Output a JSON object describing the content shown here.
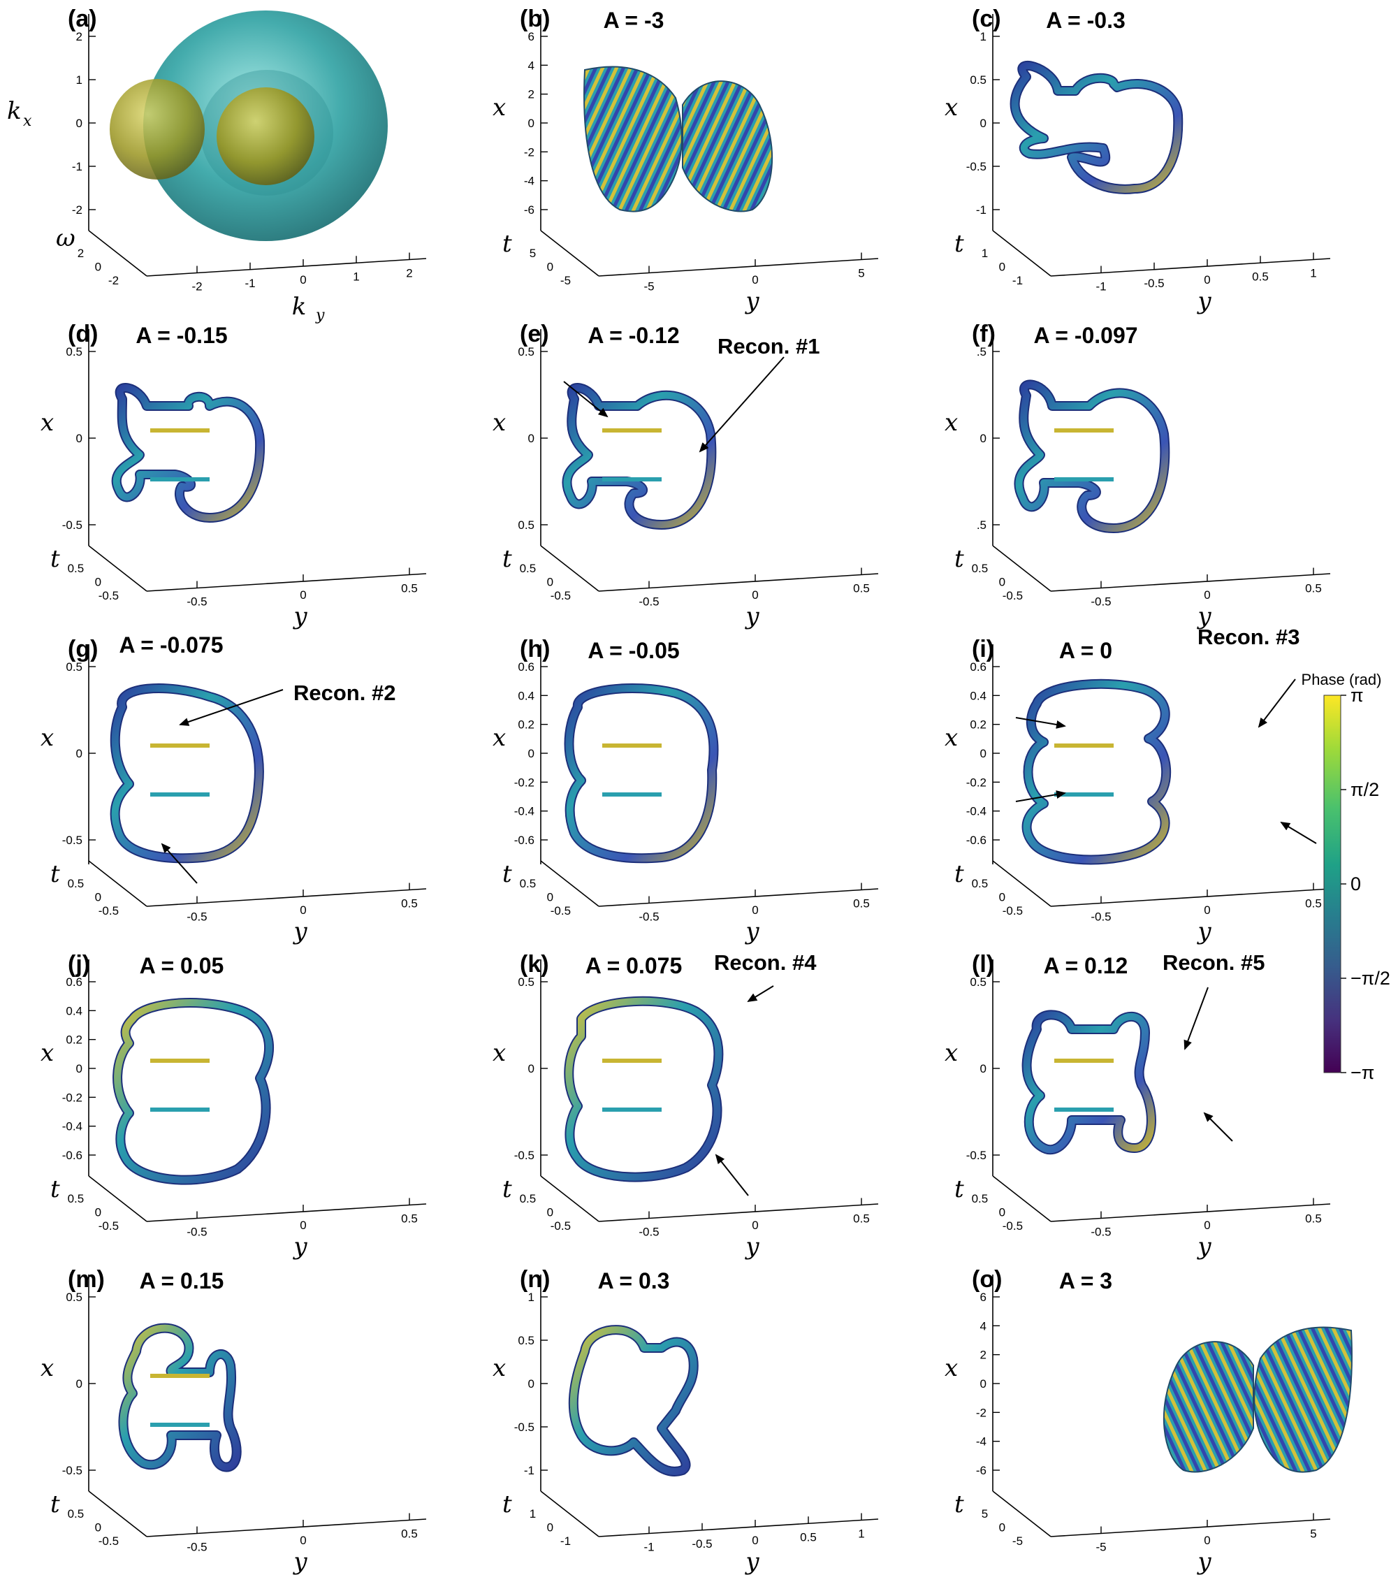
{
  "figure": {
    "panels": [
      {
        "id": "a",
        "label": "(a)",
        "title": "",
        "axis_labels": {
          "x": "k",
          "x_sub": "x",
          "t": "ω",
          "y": "k",
          "y_sub": "y"
        },
        "x_ticks": [
          "2",
          "1",
          "0",
          "-1",
          "-2"
        ],
        "t_ticks": [
          "2",
          "0",
          "-2"
        ],
        "y_ticks": [
          "-2",
          "-1",
          "0",
          "1",
          "2"
        ],
        "recon": []
      },
      {
        "id": "b",
        "label": "(b)",
        "title": "A = -3",
        "axis_labels": {
          "x": "x",
          "t": "t",
          "y": "y"
        },
        "x_ticks": [
          "6",
          "4",
          "2",
          "0",
          "-2",
          "-4",
          "-6"
        ],
        "t_ticks": [
          "5",
          "0",
          "-5"
        ],
        "y_ticks": [
          "-5",
          "0",
          "5"
        ],
        "recon": []
      },
      {
        "id": "c",
        "label": "(c)",
        "title": "A = -0.3",
        "axis_labels": {
          "x": "x",
          "t": "t",
          "y": "y"
        },
        "x_ticks": [
          "1",
          "0.5",
          "0",
          "-0.5",
          "-1"
        ],
        "t_ticks": [
          "1",
          "0",
          "-1"
        ],
        "y_ticks": [
          "-1",
          "-0.5",
          "0",
          "0.5",
          "1"
        ],
        "recon": []
      },
      {
        "id": "d",
        "label": "(d)",
        "title": "A = -0.15",
        "axis_labels": {
          "x": "x",
          "t": "t",
          "y": "y"
        },
        "x_ticks": [
          "0.5",
          "0",
          "-0.5"
        ],
        "t_ticks": [
          "0.5",
          "0",
          "-0.5"
        ],
        "y_ticks": [
          "-0.5",
          "0",
          "0.5"
        ],
        "recon": []
      },
      {
        "id": "e",
        "label": "(e)",
        "title": "A = -0.12",
        "axis_labels": {
          "x": "x",
          "t": "t",
          "y": "y"
        },
        "x_ticks": [
          "0.5",
          "0",
          "0.5"
        ],
        "t_ticks": [
          "0.5",
          "0",
          "-0.5"
        ],
        "y_ticks": [
          "-0.5",
          "0",
          "0.5"
        ],
        "recon": [
          "Recon. #1"
        ]
      },
      {
        "id": "f",
        "label": "(f)",
        "title": "A = -0.097",
        "axis_labels": {
          "x": "x",
          "t": "t",
          "y": "y"
        },
        "x_ticks": [
          ".5",
          "0",
          ".5"
        ],
        "t_ticks": [
          "0.5",
          "0",
          "-0.5"
        ],
        "y_ticks": [
          "-0.5",
          "0",
          "0.5"
        ],
        "recon": []
      },
      {
        "id": "g",
        "label": "(g)",
        "title": "A = -0.075",
        "axis_labels": {
          "x": "x",
          "t": "t",
          "y": "y"
        },
        "x_ticks": [
          "0.5",
          "0",
          "-0.5"
        ],
        "t_ticks": [
          "0.5",
          "0",
          "-0.5"
        ],
        "y_ticks": [
          "-0.5",
          "0",
          "0.5"
        ],
        "recon": [
          "Recon. #2"
        ]
      },
      {
        "id": "h",
        "label": "(h)",
        "title": "A = -0.05",
        "axis_labels": {
          "x": "x",
          "t": "t",
          "y": "y"
        },
        "x_ticks": [
          "0.6",
          "0.4",
          "0.2",
          "0",
          "-0.2",
          "-0.4",
          "-0.6"
        ],
        "t_ticks": [
          "0.5",
          "0",
          "-0.5"
        ],
        "y_ticks": [
          "-0.5",
          "0",
          "0.5"
        ],
        "recon": []
      },
      {
        "id": "i",
        "label": "(i)",
        "title": "A = 0",
        "axis_labels": {
          "x": "x",
          "t": "t",
          "y": "y"
        },
        "x_ticks": [
          "0.6",
          "0.4",
          "0.2",
          "0",
          "-0.2",
          "-0.4",
          "-0.6"
        ],
        "t_ticks": [
          "0.5",
          "0",
          "-0.5"
        ],
        "y_ticks": [
          "-0.5",
          "0",
          "0.5"
        ],
        "recon": [
          "Recon. #3"
        ]
      },
      {
        "id": "j",
        "label": "(j)",
        "title": "A = 0.05",
        "axis_labels": {
          "x": "x",
          "t": "t",
          "y": "y"
        },
        "x_ticks": [
          "0.6",
          "0.4",
          "0.2",
          "0",
          "-0.2",
          "-0.4",
          "-0.6"
        ],
        "t_ticks": [
          "0.5",
          "0",
          "-0.5"
        ],
        "y_ticks": [
          "-0.5",
          "0",
          "0.5"
        ],
        "recon": []
      },
      {
        "id": "k",
        "label": "(k)",
        "title": "A = 0.075",
        "axis_labels": {
          "x": "x",
          "t": "t",
          "y": "y"
        },
        "x_ticks": [
          "0.5",
          "0",
          "-0.5"
        ],
        "t_ticks": [
          "0.5",
          "0",
          "-0.5"
        ],
        "y_ticks": [
          "-0.5",
          "0",
          "0.5"
        ],
        "recon": [
          "Recon. #4"
        ]
      },
      {
        "id": "l",
        "label": "(l)",
        "title": "A = 0.12",
        "axis_labels": {
          "x": "x",
          "t": "t",
          "y": "y"
        },
        "x_ticks": [
          "0.5",
          "0",
          "-0.5"
        ],
        "t_ticks": [
          "0.5",
          "0",
          "-0.5"
        ],
        "y_ticks": [
          "-0.5",
          "0",
          "0.5"
        ],
        "recon": [
          "Recon. #5"
        ]
      },
      {
        "id": "m",
        "label": "(m)",
        "title": "A = 0.15",
        "axis_labels": {
          "x": "x",
          "t": "t",
          "y": "y"
        },
        "x_ticks": [
          "0.5",
          "0",
          "-0.5"
        ],
        "t_ticks": [
          "0.5",
          "0",
          "-0.5"
        ],
        "y_ticks": [
          "-0.5",
          "0",
          "0.5"
        ],
        "recon": []
      },
      {
        "id": "n",
        "label": "(n)",
        "title": "A = 0.3",
        "axis_labels": {
          "x": "x",
          "t": "t",
          "y": "y"
        },
        "x_ticks": [
          "1",
          "0.5",
          "0",
          "-0.5",
          "-1"
        ],
        "t_ticks": [
          "1",
          "0",
          "-1"
        ],
        "y_ticks": [
          "-1",
          "-0.5",
          "0",
          "0.5",
          "1"
        ],
        "recon": []
      },
      {
        "id": "o",
        "label": "(o)",
        "title": "A = 3",
        "axis_labels": {
          "x": "x",
          "t": "t",
          "y": "y"
        },
        "x_ticks": [
          "6",
          "4",
          "2",
          "0",
          "-2",
          "-4",
          "-6"
        ],
        "t_ticks": [
          "5",
          "0",
          "-5"
        ],
        "y_ticks": [
          "-5",
          "0",
          "5"
        ],
        "recon": []
      }
    ],
    "colorbar": {
      "title": "Phase (rad)",
      "ticks": [
        "π",
        "π/2",
        "0",
        "−π/2",
        "−π"
      ],
      "colors": [
        "#fde725",
        "#a0da39",
        "#4ac16d",
        "#1fa187",
        "#277f8e",
        "#365c8d",
        "#46327e",
        "#440154"
      ]
    },
    "colors": {
      "isosurface_outer": "#3aa7a8",
      "isosurface_inner": "#b7b22a",
      "tube_a": "#2a9fae",
      "tube_b": "#3a4bb8",
      "tube_c": "#d8c23a"
    }
  }
}
